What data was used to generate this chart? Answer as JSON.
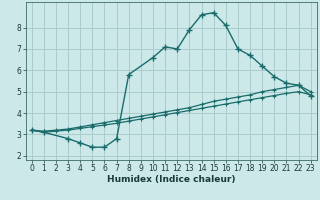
{
  "xlabel": "Humidex (Indice chaleur)",
  "bg_color": "#cce8e8",
  "grid_color": "#aacccc",
  "line_color": "#1a6b6b",
  "line1_x": [
    0,
    1,
    3,
    4,
    5,
    6,
    7,
    8,
    10,
    11,
    12,
    13,
    14,
    15,
    16,
    17,
    18,
    19,
    20,
    21,
    22,
    23
  ],
  "line1_y": [
    3.2,
    3.1,
    2.8,
    2.6,
    2.4,
    2.4,
    2.8,
    5.8,
    6.6,
    7.1,
    7.0,
    7.9,
    8.6,
    8.7,
    8.1,
    7.0,
    6.7,
    6.2,
    5.7,
    5.4,
    5.3,
    4.8
  ],
  "line2_x": [
    0,
    1,
    2,
    3,
    4,
    5,
    6,
    7,
    8,
    9,
    10,
    11,
    12,
    13,
    14,
    15,
    16,
    17,
    18,
    19,
    20,
    21,
    22,
    23
  ],
  "line2_y": [
    3.2,
    3.15,
    3.2,
    3.25,
    3.35,
    3.45,
    3.55,
    3.65,
    3.75,
    3.85,
    3.95,
    4.05,
    4.15,
    4.25,
    4.4,
    4.55,
    4.65,
    4.75,
    4.85,
    5.0,
    5.1,
    5.2,
    5.3,
    5.0
  ],
  "line3_x": [
    0,
    1,
    2,
    3,
    4,
    5,
    6,
    7,
    8,
    9,
    10,
    11,
    12,
    13,
    14,
    15,
    16,
    17,
    18,
    19,
    20,
    21,
    22,
    23
  ],
  "line3_y": [
    3.2,
    3.1,
    3.15,
    3.2,
    3.28,
    3.36,
    3.44,
    3.52,
    3.62,
    3.72,
    3.82,
    3.92,
    4.02,
    4.12,
    4.22,
    4.32,
    4.42,
    4.52,
    4.62,
    4.72,
    4.82,
    4.92,
    5.0,
    4.85
  ],
  "xlim": [
    -0.5,
    23.5
  ],
  "ylim": [
    1.8,
    9.2
  ],
  "xticks": [
    0,
    1,
    2,
    3,
    4,
    5,
    6,
    7,
    8,
    9,
    10,
    11,
    12,
    13,
    14,
    15,
    16,
    17,
    18,
    19,
    20,
    21,
    22,
    23
  ],
  "yticks": [
    2,
    3,
    4,
    5,
    6,
    7,
    8
  ]
}
